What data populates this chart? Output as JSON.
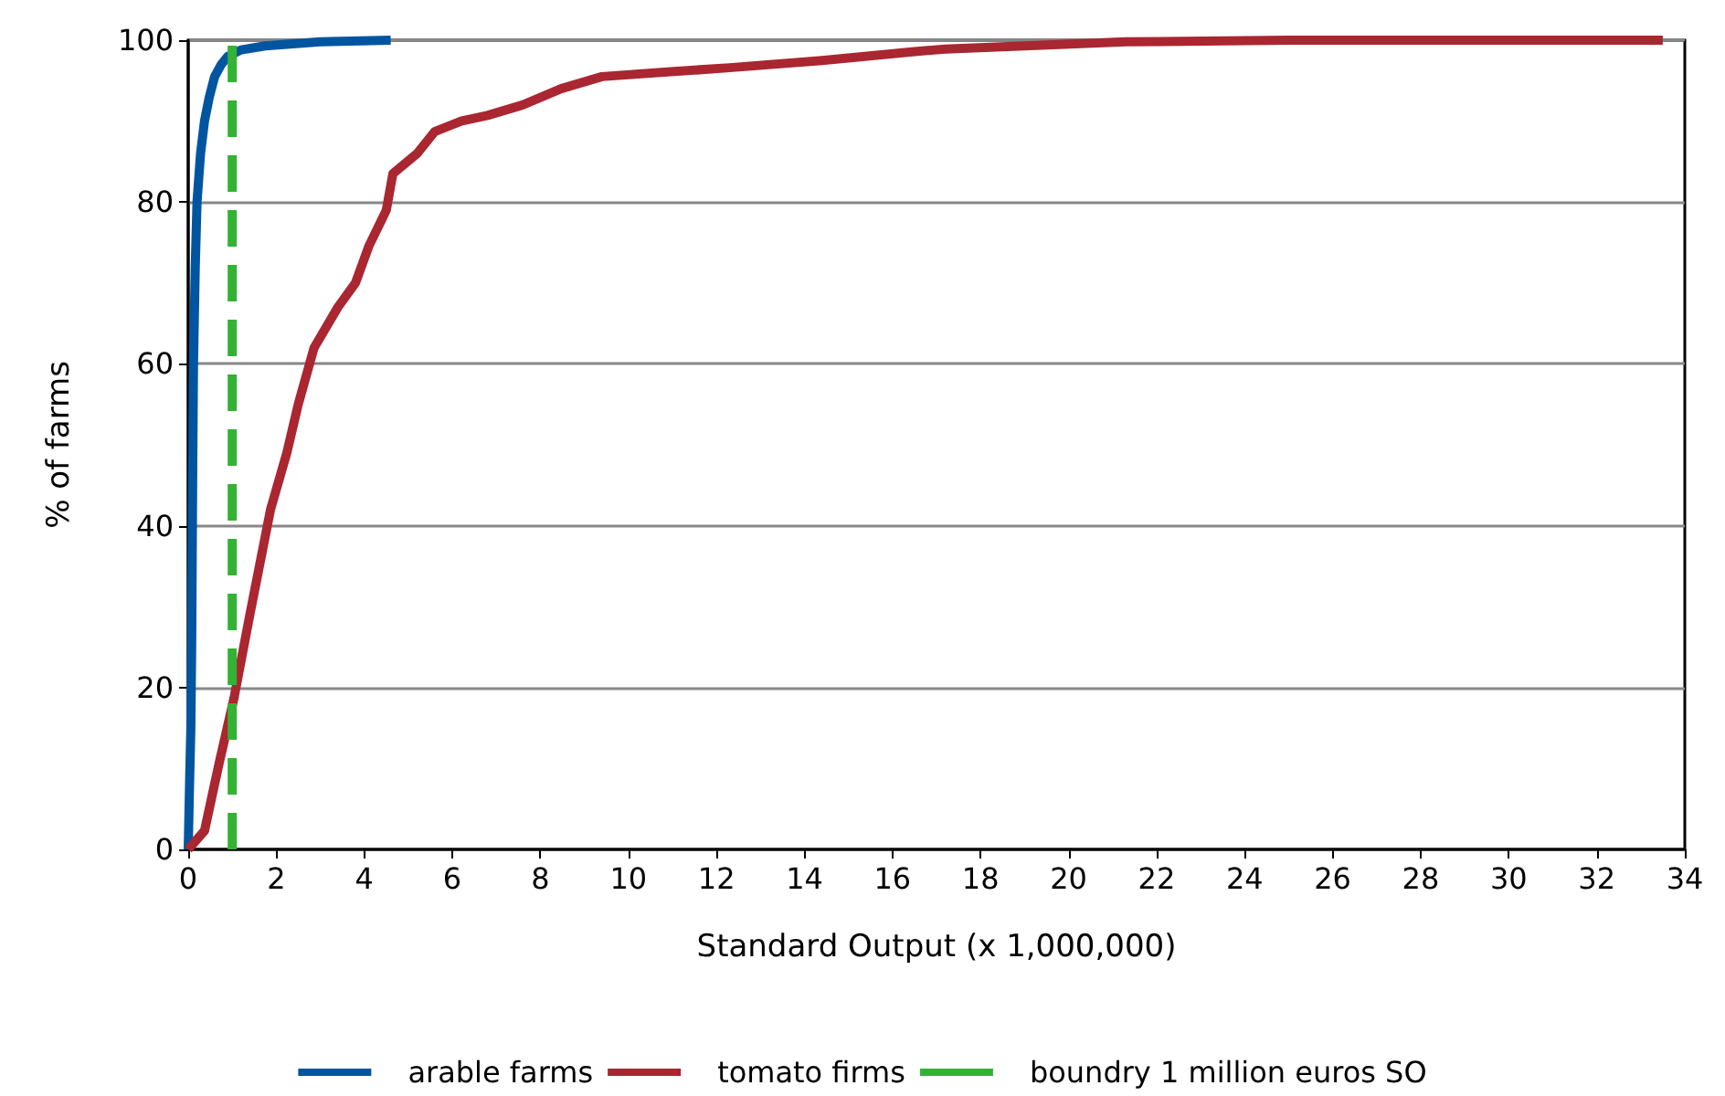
{
  "chart_data": {
    "type": "line",
    "xlabel": "Standard Output (x 1,000,000)",
    "ylabel": "% of farms",
    "xlim": [
      0,
      34
    ],
    "xticks": [
      0,
      2,
      4,
      6,
      8,
      10,
      12,
      14,
      16,
      18,
      20,
      22,
      24,
      26,
      28,
      30,
      32,
      34
    ],
    "ylim": [
      0,
      100
    ],
    "yticks": [
      0,
      20,
      40,
      60,
      80,
      100
    ],
    "grid": "y",
    "legend": "bottom",
    "marker": "none",
    "series": [
      {
        "name": "arable farms",
        "color": "#0055a0",
        "x": [
          0,
          0.03,
          0.06,
          0.08,
          0.1,
          0.12,
          0.16,
          0.2,
          0.28,
          0.37,
          0.48,
          0.6,
          0.75,
          0.9,
          1.2,
          1.75,
          3,
          4.6
        ],
        "values": [
          0,
          8,
          15,
          26,
          45,
          60,
          72,
          80,
          86,
          90,
          93,
          95.5,
          97,
          98,
          98.8,
          99.3,
          99.8,
          100
        ]
      },
      {
        "name": "tomato firms",
        "color": "#aa2630",
        "x": [
          0,
          0.37,
          0.7,
          1.04,
          1.4,
          1.87,
          2.24,
          2.5,
          2.86,
          3.4,
          3.8,
          4.1,
          4.5,
          4.65,
          5.2,
          5.6,
          6.2,
          6.8,
          7.6,
          8.47,
          9.4,
          10.96,
          12.3,
          14.4,
          16.5,
          17.2,
          21.3,
          25,
          33.5
        ],
        "values": [
          0,
          2.3,
          10.6,
          18.7,
          29,
          42,
          49,
          55,
          62,
          67,
          70,
          74.5,
          79,
          83.5,
          86,
          88.7,
          90,
          90.7,
          92,
          94,
          95.5,
          96.1,
          96.6,
          97.5,
          98.6,
          98.9,
          99.8,
          100,
          100
        ]
      },
      {
        "name": "boundry 1 million euros SO",
        "color": "#33b233",
        "line_style": "dashed",
        "x": [
          1,
          1
        ],
        "values": [
          0,
          100
        ]
      }
    ]
  }
}
